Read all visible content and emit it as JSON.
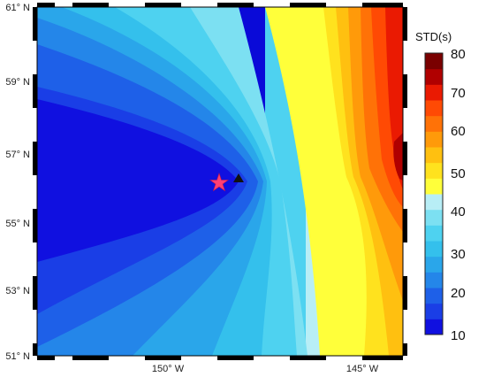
{
  "map": {
    "lat_labels": [
      "61° N",
      "59° N",
      "57° N",
      "55° N",
      "53° N",
      "51° N"
    ],
    "lon_labels": [
      "150° W",
      "145° W"
    ],
    "markers": [
      {
        "name": "star-marker",
        "shape": "star",
        "color": "#ff3f74"
      },
      {
        "name": "triangle-marker",
        "shape": "triangle",
        "color": "#111111"
      }
    ]
  },
  "colorbar": {
    "title": "STD(s)",
    "tick_labels": [
      "80",
      "70",
      "60",
      "50",
      "40",
      "30",
      "20",
      "10"
    ],
    "range": [
      10,
      80
    ],
    "colors_low_to_high": [
      "#1010e0",
      "#1a3ee6",
      "#1e60e8",
      "#2486e9",
      "#2aa6ea",
      "#34c0ec",
      "#4ed2f0",
      "#7ce0f2",
      "#b8eef6",
      "#ffff3a",
      "#ffe21e",
      "#ffc010",
      "#ff9a0a",
      "#ff7207",
      "#ff4a04",
      "#ea1a02",
      "#b00000",
      "#7a0000"
    ]
  }
}
